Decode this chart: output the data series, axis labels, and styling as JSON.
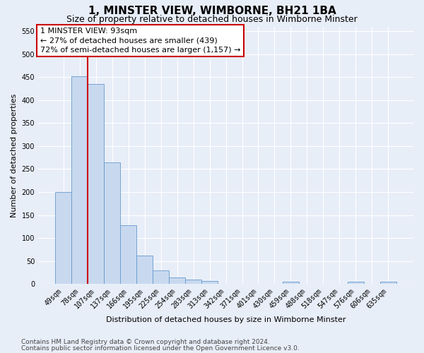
{
  "title": "1, MINSTER VIEW, WIMBORNE, BH21 1BA",
  "subtitle": "Size of property relative to detached houses in Wimborne Minster",
  "xlabel": "Distribution of detached houses by size in Wimborne Minster",
  "ylabel": "Number of detached properties",
  "categories": [
    "49sqm",
    "78sqm",
    "107sqm",
    "137sqm",
    "166sqm",
    "195sqm",
    "225sqm",
    "254sqm",
    "283sqm",
    "313sqm",
    "342sqm",
    "371sqm",
    "401sqm",
    "430sqm",
    "459sqm",
    "488sqm",
    "518sqm",
    "547sqm",
    "576sqm",
    "606sqm",
    "635sqm"
  ],
  "values": [
    200,
    452,
    435,
    265,
    128,
    62,
    30,
    15,
    10,
    7,
    1,
    1,
    1,
    1,
    5,
    0,
    0,
    0,
    5,
    0,
    5
  ],
  "bar_color": "#c8d9ef",
  "bar_edge_color": "#6699cc",
  "red_line_x": 1.5,
  "annotation_text": "1 MINSTER VIEW: 93sqm\n← 27% of detached houses are smaller (439)\n72% of semi-detached houses are larger (1,157) →",
  "annotation_box_color": "#ffffff",
  "annotation_box_edge": "#cc0000",
  "ylim_max": 560,
  "yticks": [
    0,
    50,
    100,
    150,
    200,
    250,
    300,
    350,
    400,
    450,
    500,
    550
  ],
  "footer1": "Contains HM Land Registry data © Crown copyright and database right 2024.",
  "footer2": "Contains public sector information licensed under the Open Government Licence v3.0.",
  "background_color": "#e8eef8",
  "plot_bg_color": "#e8eef8",
  "grid_color": "#ffffff",
  "title_fontsize": 11,
  "subtitle_fontsize": 9,
  "axis_label_fontsize": 8,
  "tick_fontsize": 7,
  "annotation_fontsize": 8,
  "footer_fontsize": 6.5
}
